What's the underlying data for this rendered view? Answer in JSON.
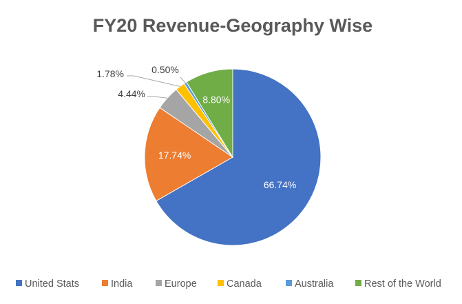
{
  "chart_data": {
    "type": "pie",
    "title": "FY20 Revenue-Geography Wise",
    "start_angle_deg": 0,
    "direction": "clockwise",
    "legend_position": "bottom",
    "slices": [
      {
        "name": "United Stats",
        "value": 66.74,
        "label": "66.74%",
        "color": "#4472C4",
        "label_color": "#ffffff"
      },
      {
        "name": "India",
        "value": 17.74,
        "label": "17.74%",
        "color": "#ED7D31",
        "label_color": "#ffffff"
      },
      {
        "name": "Europe",
        "value": 4.44,
        "label": "4.44%",
        "color": "#A5A5A5",
        "label_color": "#404040"
      },
      {
        "name": "Canada",
        "value": 1.78,
        "label": "1.78%",
        "color": "#FFC000",
        "label_color": "#404040"
      },
      {
        "name": "Australia",
        "value": 0.5,
        "label": "0.50%",
        "color": "#5B9BD5",
        "label_color": "#404040"
      },
      {
        "name": "Rest of the World",
        "value": 8.8,
        "label": "8.80%",
        "color": "#70AD47",
        "label_color": "#ffffff"
      }
    ]
  }
}
